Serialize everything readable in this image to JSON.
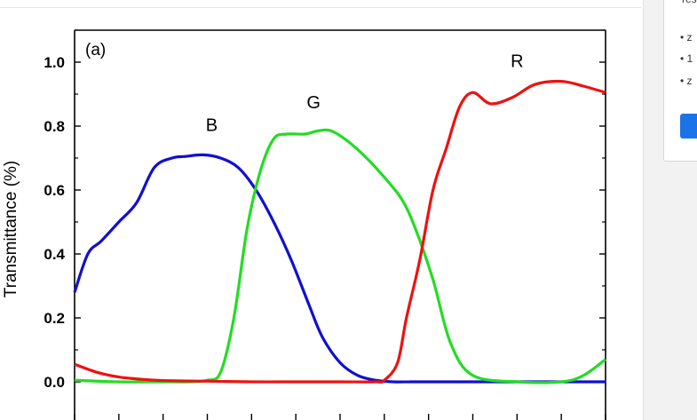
{
  "sidebar": {
    "card_text": "res",
    "bullets": [
      "• z",
      "• 1",
      "• z"
    ],
    "button_color": "#1a73e8"
  },
  "chart_data": {
    "type": "line",
    "panel_label": "(a)",
    "title": "",
    "xlabel": "",
    "ylabel": "Transmittance (%)",
    "xlim": [
      0,
      12
    ],
    "ylim": [
      -0.1,
      1.1
    ],
    "yticks": [
      "0.0",
      "0.2",
      "0.4",
      "0.6",
      "0.8",
      "1.0"
    ],
    "series": [
      {
        "name": "B",
        "color": "#1010d0",
        "x": [
          0,
          0.3,
          0.6,
          1.0,
          1.4,
          1.8,
          2.2,
          2.5,
          2.9,
          3.3,
          3.7,
          4.1,
          4.5,
          4.9,
          5.3,
          5.6,
          6.0,
          6.4,
          6.8,
          7.2,
          7.6,
          8.0,
          12
        ],
        "y": [
          0.28,
          0.4,
          0.44,
          0.5,
          0.56,
          0.67,
          0.7,
          0.705,
          0.71,
          0.7,
          0.67,
          0.6,
          0.5,
          0.38,
          0.24,
          0.14,
          0.06,
          0.02,
          0.005,
          0.0,
          0.0,
          0.0,
          0.0
        ]
      },
      {
        "name": "G",
        "color": "#22dd22",
        "x": [
          0,
          1.0,
          2.0,
          2.6,
          3.0,
          3.3,
          3.6,
          3.9,
          4.2,
          4.5,
          4.8,
          5.2,
          5.5,
          5.8,
          6.2,
          6.6,
          7.0,
          7.4,
          7.7,
          8.1,
          8.5,
          9.0,
          10.0,
          11.0,
          11.5,
          12
        ],
        "y": [
          0.005,
          0.0,
          0.0,
          0.0,
          0.005,
          0.03,
          0.2,
          0.48,
          0.66,
          0.76,
          0.775,
          0.775,
          0.785,
          0.785,
          0.75,
          0.7,
          0.64,
          0.57,
          0.48,
          0.32,
          0.12,
          0.02,
          0.0,
          0.0,
          0.02,
          0.07
        ]
      },
      {
        "name": "R",
        "color": "#ee1111",
        "x": [
          0,
          0.5,
          1.0,
          1.5,
          2.0,
          3.0,
          4.0,
          5.0,
          6.0,
          6.8,
          7.0,
          7.3,
          7.5,
          7.8,
          8.1,
          8.4,
          8.7,
          9.0,
          9.4,
          9.9,
          10.4,
          11.0,
          11.5,
          12
        ],
        "y": [
          0.055,
          0.03,
          0.015,
          0.008,
          0.004,
          0.002,
          0.0,
          0.0,
          0.0,
          0.0,
          0.005,
          0.06,
          0.2,
          0.38,
          0.6,
          0.73,
          0.86,
          0.905,
          0.87,
          0.89,
          0.93,
          0.94,
          0.925,
          0.905
        ]
      }
    ]
  }
}
